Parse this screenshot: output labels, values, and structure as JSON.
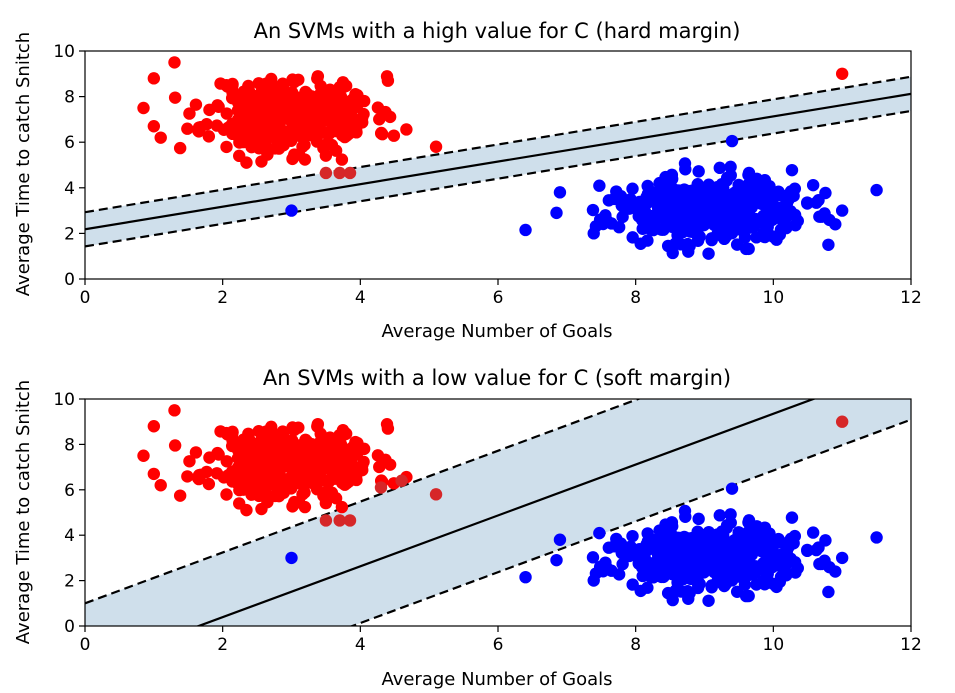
{
  "chart_data": [
    {
      "type": "scatter",
      "title": "An SVMs with a high value for C (hard margin)",
      "xlabel": "Average Number of Goals",
      "ylabel": "Average Time to catch Snitch",
      "xlim": [
        0,
        12
      ],
      "ylim": [
        0,
        10
      ],
      "xticks": [
        "0",
        "2",
        "4",
        "6",
        "8",
        "10",
        "12"
      ],
      "yticks": [
        "0",
        "2",
        "4",
        "6",
        "8",
        "10"
      ],
      "decision_boundary": {
        "slope": 0.495,
        "intercept": 2.18
      },
      "margin_lines": [
        {
          "name": "upper margin",
          "slope": 0.495,
          "intercept": 2.93
        },
        {
          "name": "lower margin",
          "slope": 0.495,
          "intercept": 1.43
        }
      ],
      "margin_fill_color": "#cfdfeb",
      "series": [
        {
          "name": "class red",
          "color": "#ff0000",
          "cluster": {
            "cx": 3.0,
            "cy": 7.2,
            "sx": 0.6,
            "sy": 0.85,
            "n": 380,
            "xmin": 1.1,
            "xmax": 4.9,
            "ymin": 4.9,
            "ymax": 9.0,
            "seed": 11
          },
          "points": [
            [
              0.85,
              7.5
            ],
            [
              1.0,
              8.8
            ],
            [
              1.0,
              6.7
            ],
            [
              1.3,
              9.5
            ],
            [
              1.1,
              6.2
            ],
            [
              5.1,
              5.8
            ],
            [
              11.0,
              9.0
            ]
          ]
        },
        {
          "name": "class red (near boundary)",
          "color": "#d62728",
          "points": [
            [
              3.5,
              4.65
            ],
            [
              3.7,
              4.65
            ],
            [
              3.85,
              4.65
            ]
          ]
        },
        {
          "name": "class blue",
          "color": "#0000ff",
          "cluster": {
            "cx": 9.0,
            "cy": 3.0,
            "sx": 0.72,
            "sy": 0.75,
            "n": 420,
            "xmin": 7.3,
            "xmax": 11.0,
            "ymin": 1.1,
            "ymax": 5.1,
            "seed": 23
          },
          "points": [
            [
              3.0,
              3.0
            ],
            [
              6.4,
              2.15
            ],
            [
              6.85,
              2.9
            ],
            [
              6.9,
              3.8
            ],
            [
              9.4,
              6.05
            ],
            [
              11.5,
              3.9
            ],
            [
              11.0,
              3.0
            ],
            [
              10.9,
              2.4
            ],
            [
              10.8,
              1.5
            ]
          ]
        }
      ]
    },
    {
      "type": "scatter",
      "title": "An SVMs with a low value for C (soft margin)",
      "xlabel": "Average Number of Goals",
      "ylabel": "Average Time to catch Snitch",
      "xlim": [
        0,
        12
      ],
      "ylim": [
        0,
        10
      ],
      "xticks": [
        "0",
        "2",
        "4",
        "6",
        "8",
        "10",
        "12"
      ],
      "yticks": [
        "0",
        "2",
        "4",
        "6",
        "8",
        "10"
      ],
      "decision_boundary": {
        "slope": 1.12,
        "intercept": -1.85
      },
      "margin_lines": [
        {
          "name": "upper margin",
          "slope": 1.12,
          "intercept": 1.0
        },
        {
          "name": "lower margin",
          "slope": 1.12,
          "intercept": -4.35
        }
      ],
      "margin_fill_color": "#cfdfeb",
      "series": [
        {
          "name": "class red",
          "color": "#ff0000",
          "cluster": {
            "cx": 3.0,
            "cy": 7.2,
            "sx": 0.6,
            "sy": 0.85,
            "n": 380,
            "xmin": 1.1,
            "xmax": 4.9,
            "ymin": 4.9,
            "ymax": 9.0,
            "seed": 11
          },
          "points": [
            [
              0.85,
              7.5
            ],
            [
              1.0,
              8.8
            ],
            [
              1.0,
              6.7
            ],
            [
              1.3,
              9.5
            ],
            [
              1.1,
              6.2
            ]
          ]
        },
        {
          "name": "class red (inside margin)",
          "color": "#d62728",
          "points": [
            [
              3.5,
              4.65
            ],
            [
              3.7,
              4.65
            ],
            [
              3.85,
              4.65
            ],
            [
              5.1,
              5.8
            ],
            [
              11.0,
              9.0
            ],
            [
              4.3,
              6.1
            ],
            [
              4.6,
              6.4
            ]
          ]
        },
        {
          "name": "class blue",
          "color": "#0000ff",
          "cluster": {
            "cx": 9.0,
            "cy": 3.0,
            "sx": 0.72,
            "sy": 0.75,
            "n": 420,
            "xmin": 7.3,
            "xmax": 11.0,
            "ymin": 1.1,
            "ymax": 5.1,
            "seed": 23
          },
          "points": [
            [
              3.0,
              3.0
            ],
            [
              6.4,
              2.15
            ],
            [
              6.85,
              2.9
            ],
            [
              6.9,
              3.8
            ],
            [
              9.4,
              6.05
            ],
            [
              11.5,
              3.9
            ],
            [
              11.0,
              3.0
            ],
            [
              10.9,
              2.4
            ],
            [
              10.8,
              1.5
            ]
          ]
        }
      ]
    }
  ]
}
